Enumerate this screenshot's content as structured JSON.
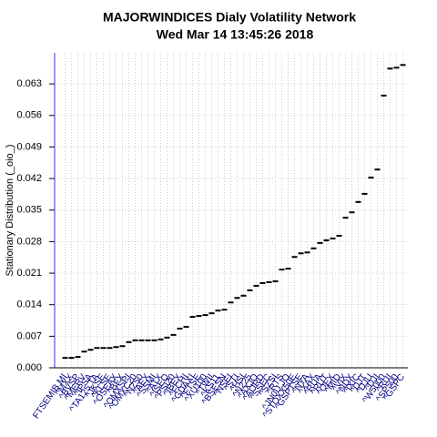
{
  "chart_data": {
    "type": "scatter",
    "title": "MAJORWINDICES  Dialy Volatility Network",
    "subtitle": "Wed Mar 14 13:45:26 2018",
    "y_label": "Stationary Distribution (_oio_)",
    "categories": [
      "FTSEMIB.MI",
      "^MXX",
      "^BVSP",
      "^MERV",
      "^IPSA",
      "^TA125.TA",
      "^JKSE",
      "^KLSE",
      "^OSEAX",
      "^BFX",
      "^OMXSPI",
      "^OMXC20",
      "^NZ50",
      "^AEX",
      "^SSMI",
      "^ATX",
      "^ISEQ",
      "^PSI20",
      "^IBEX",
      "^FCHI",
      "^GDAXI",
      "^FTSE",
      "^XU100",
      "^TWII",
      "^KS11",
      "^BSESN",
      "^NSEI",
      "^STI",
      "^HSI",
      "^N225",
      "^AXJO",
      "^AORD",
      "^SSEC",
      "^SZSI",
      "^RTS",
      "^JN0U.JO",
      "^STOXX50E",
      "^GSPTSE",
      "^NYA",
      "^XAX",
      "^RUA",
      "^RUT",
      "^OEX",
      "^MID",
      "^VIX",
      "^NDX",
      "^IXIC",
      "^DJT",
      "^DJU",
      "^DJI",
      "^W5000",
      "^RUI",
      "^SP500",
      "^GSPC"
    ],
    "values": [
      0.0022,
      0.0022,
      0.0024,
      0.0036,
      0.004,
      0.0044,
      0.0044,
      0.0044,
      0.0046,
      0.0048,
      0.0057,
      0.0061,
      0.0061,
      0.0061,
      0.0061,
      0.0063,
      0.0067,
      0.0073,
      0.0087,
      0.0091,
      0.0113,
      0.0115,
      0.0117,
      0.0121,
      0.0127,
      0.0129,
      0.0145,
      0.0155,
      0.016,
      0.0172,
      0.0182,
      0.0188,
      0.019,
      0.0192,
      0.0218,
      0.022,
      0.0246,
      0.0254,
      0.0256,
      0.0265,
      0.0277,
      0.0283,
      0.0287,
      0.0293,
      0.0333,
      0.0345,
      0.0368,
      0.0386,
      0.0422,
      0.044,
      0.0604,
      0.0664,
      0.0666,
      0.0672
    ],
    "color": "#000000",
    "ylim": [
      0,
      0.0699
    ],
    "yticks": [
      {
        "value": 0,
        "label": "0.000"
      },
      0.007,
      0.014,
      0.021,
      0.028,
      0.035,
      0.042,
      0.049,
      0.056,
      0.063
    ],
    "grid": true
  }
}
